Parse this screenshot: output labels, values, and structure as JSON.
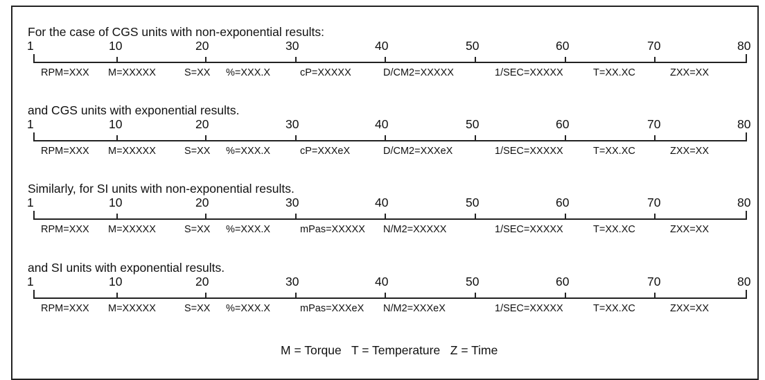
{
  "ruler_numbers": [
    "1",
    "10",
    "20",
    "30",
    "40",
    "50",
    "60",
    "70",
    "80"
  ],
  "sections": [
    {
      "heading": "For the case of CGS units with non-exponential results:",
      "fields": [
        "RPM=XXX",
        "M=XXXXX",
        "S=XX",
        "%=XXX.X",
        "cP=XXXXX",
        "D/CM2=XXXXX",
        "1/SEC=XXXXX",
        "T=XX.XC",
        "ZXX=XX"
      ]
    },
    {
      "heading": "and CGS units with exponential results.",
      "fields": [
        "RPM=XXX",
        "M=XXXXX",
        "S=XX",
        "%=XXX.X",
        "cP=XXXeX",
        "D/CM2=XXXeX",
        "1/SEC=XXXXX",
        "T=XX.XC",
        "ZXX=XX"
      ]
    },
    {
      "heading": "Similarly, for SI units with non-exponential results.",
      "fields": [
        "RPM=XXX",
        "M=XXXXX",
        "S=XX",
        "%=XXX.X",
        "mPas=XXXXX",
        "N/M2=XXXXX",
        "1/SEC=XXXXX",
        "T=XX.XC",
        "ZXX=XX"
      ]
    },
    {
      "heading": "and SI units with exponential results.",
      "fields": [
        "RPM=XXX",
        "M=XXXXX",
        "S=XX",
        "%=XXX.X",
        "mPas=XXXeX",
        "N/M2=XXXeX",
        "1/SEC=XXXXX",
        "T=XX.XC",
        "ZXX=XX"
      ]
    }
  ],
  "legend": "M = Torque   T = Temperature   Z = Time"
}
